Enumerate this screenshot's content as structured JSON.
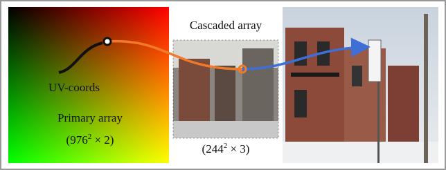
{
  "uv_label": "UV-coords",
  "primary": {
    "label": "Primary array",
    "open": "(976",
    "exponent": "2",
    "close": " × 2)"
  },
  "cascaded": {
    "label": "Cascaded array",
    "open": "(244",
    "exponent": "2",
    "close": " × 3)"
  }
}
